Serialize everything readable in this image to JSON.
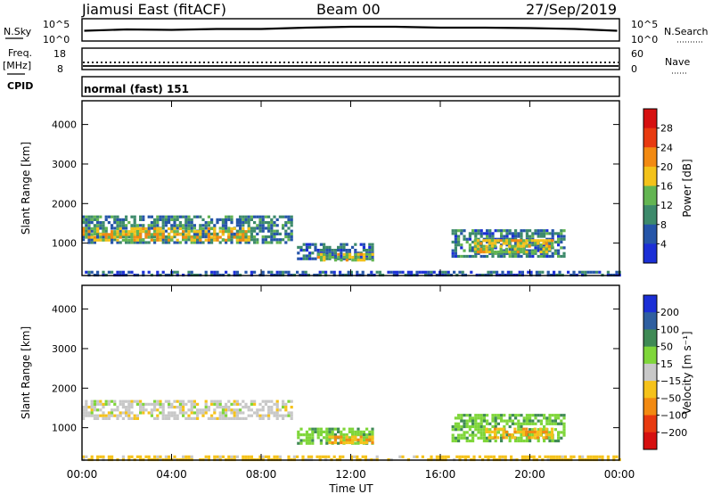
{
  "header": {
    "station": "Jiamusi East (fitACF)",
    "beam": "Beam 00",
    "date": "27/Sep/2019"
  },
  "noise_panel": {
    "left_label": "N.Sky",
    "right_label": "N.Search",
    "left_ticks": [
      "10^5",
      "10^0"
    ],
    "right_ticks": [
      "10^5",
      "10^0"
    ]
  },
  "freq_panel": {
    "left_label_1": "Freq.",
    "left_label_2": "[MHz]",
    "left_ticks": [
      "18",
      "8"
    ],
    "right_label": "Nave",
    "right_ticks": [
      "60",
      "0"
    ]
  },
  "cpid_panel": {
    "label": "CPID",
    "text": "normal (fast) 151"
  },
  "power_panel": {
    "ylabel": "Slant Range [km]",
    "yticks": [
      "4000",
      "3000",
      "2000",
      "1000"
    ],
    "colorbar_label": "Power [dB]",
    "colorbar_ticks": [
      "28",
      "24",
      "20",
      "16",
      "12",
      "8",
      "4"
    ],
    "colors": [
      "#1b2fd6",
      "#2555a8",
      "#3d8a6b",
      "#63b552",
      "#f3c21a",
      "#f28a12",
      "#e83a10",
      "#d61010"
    ]
  },
  "velocity_panel": {
    "ylabel": "Slant Range [km]",
    "yticks": [
      "4000",
      "3000",
      "2000",
      "1000"
    ],
    "colorbar_label": "Velocity [m s⁻¹]",
    "colorbar_ticks": [
      "200",
      "100",
      "50",
      "15",
      "−15",
      "−50",
      "−100",
      "−200"
    ],
    "colors": [
      "#1b2fd6",
      "#2f5fa0",
      "#3f8a55",
      "#7fd63a",
      "#c8c8c8",
      "#f5c21a",
      "#f28a12",
      "#e83a10",
      "#d61010"
    ]
  },
  "xaxis": {
    "ticks": [
      "00:00",
      "04:00",
      "08:00",
      "12:00",
      "16:00",
      "20:00",
      "00:00"
    ],
    "label": "Time UT"
  },
  "chart_data": [
    {
      "type": "line",
      "title": "N.Sky / N.Search",
      "x_range_hours": [
        0,
        24
      ],
      "ylim_log10": [
        0,
        5
      ],
      "series": [
        {
          "x": [
            0.1,
            2,
            4,
            6,
            8,
            10,
            12,
            14,
            16,
            18,
            20,
            22,
            23.9
          ],
          "y_log10": [
            2.3,
            2.6,
            2.5,
            2.7,
            2.7,
            3.0,
            3.2,
            3.2,
            3.0,
            3.0,
            2.9,
            2.7,
            2.3
          ]
        }
      ]
    },
    {
      "type": "heatmap",
      "title": "Power [dB]",
      "x_range_hours": [
        0,
        24
      ],
      "y_range_km": [
        180,
        4600
      ],
      "clim": [
        0,
        32
      ],
      "regions": [
        {
          "t0": 0.0,
          "t1": 9.3,
          "r0": 1050,
          "r1": 1700,
          "power": 9
        },
        {
          "t0": 0.0,
          "t1": 7.5,
          "r0": 1100,
          "r1": 1400,
          "power": 18
        },
        {
          "t0": 9.6,
          "t1": 13.0,
          "r0": 600,
          "r1": 1000,
          "power": 7
        },
        {
          "t0": 10.5,
          "t1": 13.0,
          "r0": 600,
          "r1": 750,
          "power": 17
        },
        {
          "t0": 16.5,
          "t1": 21.5,
          "r0": 650,
          "r1": 1350,
          "power": 8
        },
        {
          "t0": 17.5,
          "t1": 21.0,
          "r0": 750,
          "r1": 1100,
          "power": 17
        },
        {
          "t0": 0.0,
          "t1": 24.0,
          "r0": 180,
          "r1": 300,
          "power": 6
        }
      ]
    },
    {
      "type": "heatmap",
      "title": "Velocity [m s⁻¹]",
      "x_range_hours": [
        0,
        24
      ],
      "y_range_km": [
        180,
        4600
      ],
      "clim": [
        -200,
        200
      ],
      "regions": [
        {
          "t0": 0.0,
          "t1": 9.3,
          "r0": 1200,
          "r1": 1700,
          "velocity": 0
        },
        {
          "t0": 9.6,
          "t1": 13.0,
          "r0": 600,
          "r1": 1000,
          "velocity": 40
        },
        {
          "t0": 11.0,
          "t1": 13.0,
          "r0": 600,
          "r1": 800,
          "velocity": -40
        },
        {
          "t0": 16.5,
          "t1": 21.5,
          "r0": 650,
          "r1": 1350,
          "velocity": 40
        },
        {
          "t0": 18.0,
          "t1": 21.0,
          "r0": 750,
          "r1": 1000,
          "velocity": -40
        },
        {
          "t0": 0.0,
          "t1": 24.0,
          "r0": 180,
          "r1": 300,
          "velocity": -30
        }
      ]
    }
  ]
}
